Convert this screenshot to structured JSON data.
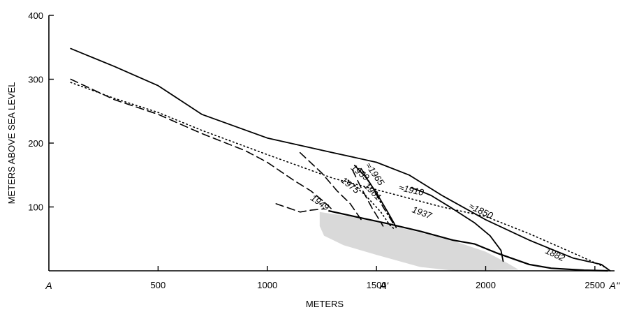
{
  "chart_data": {
    "type": "line",
    "title": "",
    "xlabel": "METERS",
    "ylabel": "METERS ABOVE SEA LEVEL",
    "xlim": [
      0,
      2590
    ],
    "ylim": [
      0,
      400
    ],
    "grid": false,
    "legend": "none",
    "x_ticks": [
      {
        "value": 500,
        "label": "500"
      },
      {
        "value": 1000,
        "label": "1000"
      },
      {
        "value": 1500,
        "label": "1500"
      },
      {
        "value": 2000,
        "label": "2000"
      },
      {
        "value": 2500,
        "label": "2500"
      }
    ],
    "y_ticks": [
      {
        "value": 100,
        "label": "100"
      },
      {
        "value": 200,
        "label": "200"
      },
      {
        "value": 300,
        "label": "300"
      },
      {
        "value": 400,
        "label": "400"
      }
    ],
    "point_labels": [
      {
        "text": "A",
        "x": 0
      },
      {
        "text": "A'",
        "x": 1535
      },
      {
        "text": "A''",
        "x": 2590
      }
    ],
    "series": [
      {
        "name": "≈1850",
        "style": "solid",
        "points": [
          [
            100,
            348
          ],
          [
            300,
            320
          ],
          [
            500,
            290
          ],
          [
            700,
            245
          ],
          [
            1000,
            208
          ],
          [
            1300,
            185
          ],
          [
            1500,
            170
          ],
          [
            1650,
            150
          ],
          [
            1800,
            118
          ],
          [
            2000,
            80
          ],
          [
            2200,
            48
          ],
          [
            2400,
            20
          ],
          [
            2530,
            10
          ],
          [
            2570,
            0
          ]
        ]
      },
      {
        "name": "≈1910",
        "style": "solid",
        "points": [
          [
            1660,
            130
          ],
          [
            1700,
            125
          ],
          [
            1750,
            118
          ],
          [
            1850,
            97
          ],
          [
            1950,
            75
          ],
          [
            2020,
            55
          ],
          [
            2070,
            32
          ],
          [
            2080,
            15
          ]
        ]
      },
      {
        "name": "≈1965",
        "style": "solid",
        "points": [
          [
            1400,
            165
          ],
          [
            1450,
            147
          ],
          [
            1500,
            122
          ],
          [
            1550,
            93
          ],
          [
            1580,
            75
          ],
          [
            1590,
            68
          ]
        ]
      },
      {
        "name": "1882",
        "style": "dotted",
        "points": [
          [
            100,
            295
          ],
          [
            300,
            270
          ],
          [
            500,
            248
          ],
          [
            700,
            220
          ],
          [
            1000,
            182
          ],
          [
            1300,
            145
          ],
          [
            1600,
            118
          ],
          [
            1800,
            100
          ],
          [
            2000,
            85
          ],
          [
            2200,
            58
          ],
          [
            2400,
            28
          ],
          [
            2550,
            5
          ]
        ]
      },
      {
        "name": "1937",
        "style": "dotted",
        "points": [
          [
            1370,
            142
          ],
          [
            1450,
            118
          ],
          [
            1520,
            92
          ],
          [
            1560,
            72
          ],
          [
            1580,
            66
          ]
        ]
      },
      {
        "name": "1975",
        "style": "dashdot",
        "points": [
          [
            1430,
            160
          ],
          [
            1480,
            132
          ],
          [
            1530,
            100
          ],
          [
            1570,
            78
          ],
          [
            1580,
            72
          ]
        ]
      },
      {
        "name": "1961",
        "style": "dashed",
        "points": [
          [
            1390,
            158
          ],
          [
            1430,
            130
          ],
          [
            1480,
            98
          ],
          [
            1520,
            76
          ],
          [
            1530,
            70
          ]
        ]
      },
      {
        "name": "1959",
        "style": "dashed",
        "points": [
          [
            1150,
            185
          ],
          [
            1250,
            153
          ],
          [
            1320,
            125
          ],
          [
            1380,
            105
          ],
          [
            1430,
            80
          ]
        ]
      },
      {
        "name": "1949",
        "style": "dashed",
        "points": [
          [
            100,
            300
          ],
          [
            300,
            268
          ],
          [
            500,
            245
          ],
          [
            700,
            215
          ],
          [
            900,
            188
          ],
          [
            1000,
            170
          ],
          [
            1120,
            142
          ],
          [
            1200,
            125
          ],
          [
            1260,
            108
          ],
          [
            1300,
            95
          ]
        ]
      },
      {
        "name": "",
        "style": "dashed",
        "points": [
          [
            1040,
            105
          ],
          [
            1100,
            98
          ],
          [
            1150,
            92
          ],
          [
            1200,
            95
          ],
          [
            1260,
            97
          ]
        ]
      }
    ],
    "curve_labels": [
      {
        "text": "1959",
        "x": 1380,
        "y": 160,
        "angle": 38
      },
      {
        "text": "1975",
        "x": 1335,
        "y": 140,
        "angle": 38
      },
      {
        "text": "1961",
        "x": 1440,
        "y": 132,
        "angle": 45
      },
      {
        "text": "≈1965",
        "x": 1448,
        "y": 165,
        "angle": 55
      },
      {
        "text": "1949",
        "x": 1195,
        "y": 112,
        "angle": 35
      },
      {
        "text": "≈1910",
        "x": 1600,
        "y": 126,
        "angle": 12
      },
      {
        "text": "1937",
        "x": 1660,
        "y": 92,
        "angle": 20
      },
      {
        "text": "≈1850",
        "x": 1920,
        "y": 98,
        "angle": 25
      },
      {
        "text": "1882",
        "x": 2270,
        "y": 28,
        "angle": 25
      }
    ],
    "bedrock_surface": [
      [
        1280,
        94
      ],
      [
        1400,
        85
      ],
      [
        1550,
        74
      ],
      [
        1700,
        62
      ],
      [
        1850,
        48
      ],
      [
        1950,
        42
      ],
      [
        2050,
        28
      ],
      [
        2200,
        10
      ],
      [
        2300,
        4
      ],
      [
        2450,
        1
      ],
      [
        2560,
        0
      ]
    ],
    "rock_mass": [
      [
        1240,
        92
      ],
      [
        1400,
        84
      ],
      [
        1550,
        72
      ],
      [
        1700,
        60
      ],
      [
        1860,
        46
      ],
      [
        2000,
        30
      ],
      [
        2100,
        12
      ],
      [
        2150,
        2
      ],
      [
        1860,
        0
      ],
      [
        1700,
        6
      ],
      [
        1500,
        25
      ],
      [
        1350,
        40
      ],
      [
        1260,
        55
      ],
      [
        1240,
        70
      ]
    ]
  }
}
